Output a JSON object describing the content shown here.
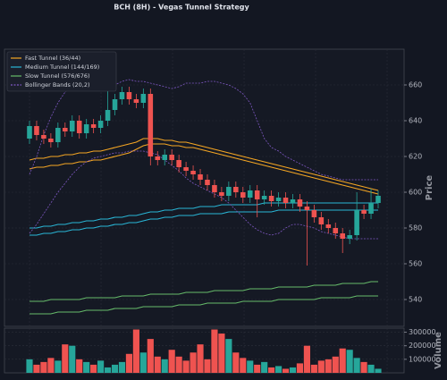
{
  "chart_data": {
    "type": "candlestick",
    "title": "BCH (8H) - Vegas Tunnel Strategy",
    "ylabel": "Price",
    "ylim": [
      525,
      680
    ],
    "yticks": [
      540,
      560,
      580,
      600,
      620,
      640,
      660
    ],
    "grid": true,
    "legend": "upper left",
    "up_color": "#26a69a",
    "down_color": "#ef5350",
    "open": [
      630,
      637,
      632,
      630,
      628,
      636,
      634,
      640,
      633,
      638,
      636,
      640,
      646,
      652,
      656,
      652,
      650,
      655,
      620,
      618,
      621,
      618,
      614,
      612,
      610,
      607,
      604,
      600,
      598,
      603,
      600,
      597,
      601,
      596,
      598,
      595,
      597,
      594,
      596,
      592,
      590,
      586,
      582,
      580,
      577,
      574,
      576,
      590,
      588,
      594
    ],
    "close": [
      637,
      632,
      630,
      628,
      636,
      634,
      640,
      633,
      638,
      636,
      640,
      646,
      652,
      656,
      652,
      650,
      655,
      620,
      618,
      621,
      618,
      614,
      612,
      610,
      607,
      604,
      600,
      598,
      603,
      600,
      597,
      601,
      596,
      598,
      595,
      597,
      594,
      596,
      592,
      590,
      586,
      582,
      580,
      577,
      574,
      576,
      590,
      588,
      594,
      598
    ],
    "high": [
      640,
      640,
      635,
      633,
      639,
      639,
      643,
      643,
      641,
      641,
      643,
      660,
      655,
      659,
      659,
      655,
      658,
      658,
      623,
      624,
      624,
      621,
      617,
      615,
      613,
      610,
      607,
      603,
      606,
      606,
      603,
      604,
      604,
      601,
      601,
      600,
      600,
      599,
      599,
      595,
      593,
      589,
      585,
      583,
      580,
      579,
      600,
      593,
      602,
      601
    ],
    "low": [
      627,
      629,
      627,
      625,
      625,
      631,
      631,
      630,
      630,
      633,
      633,
      637,
      643,
      649,
      649,
      647,
      647,
      615,
      615,
      615,
      615,
      611,
      609,
      607,
      604,
      601,
      597,
      595,
      595,
      597,
      594,
      594,
      586,
      593,
      592,
      592,
      591,
      591,
      589,
      559,
      583,
      579,
      577,
      574,
      566,
      571,
      573,
      585,
      585,
      591
    ],
    "series": [
      {
        "name": "Fast Tunnel (36/44)",
        "color": "#f5a623",
        "upper": [
          618,
          619,
          619,
          620,
          620,
          621,
          621,
          622,
          622,
          623,
          623,
          624,
          625,
          626,
          627,
          628,
          630,
          630,
          630,
          629,
          629,
          628,
          628,
          627,
          626,
          625,
          624,
          623,
          622,
          621,
          620,
          619,
          618,
          617,
          616,
          615,
          614,
          613,
          612,
          611,
          610,
          609,
          608,
          607,
          606,
          605,
          604,
          603,
          602,
          601
        ],
        "lower": [
          613,
          614,
          614,
          615,
          615,
          616,
          616,
          617,
          617,
          618,
          618,
          619,
          620,
          621,
          622,
          624,
          626,
          627,
          627,
          627,
          626,
          626,
          625,
          625,
          624,
          623,
          622,
          621,
          620,
          619,
          618,
          617,
          616,
          615,
          614,
          613,
          612,
          611,
          610,
          609,
          608,
          607,
          606,
          605,
          604,
          603,
          602,
          601,
          600,
          599
        ]
      },
      {
        "name": "Medium Tunnel (144/169)",
        "color": "#29b6d6",
        "upper": [
          580,
          580,
          581,
          581,
          582,
          582,
          583,
          583,
          584,
          584,
          585,
          585,
          586,
          586,
          587,
          587,
          588,
          589,
          589,
          590,
          590,
          591,
          591,
          591,
          592,
          592,
          592,
          593,
          593,
          593,
          593,
          593,
          593,
          594,
          594,
          594,
          594,
          594,
          594,
          594,
          594,
          594,
          594,
          594,
          594,
          594,
          594,
          594,
          594,
          594
        ],
        "lower": [
          576,
          576,
          577,
          577,
          578,
          578,
          579,
          579,
          580,
          580,
          581,
          581,
          582,
          582,
          583,
          583,
          584,
          585,
          585,
          586,
          586,
          587,
          587,
          587,
          588,
          588,
          588,
          588,
          589,
          589,
          589,
          589,
          589,
          589,
          589,
          590,
          590,
          590,
          590,
          590,
          590,
          590,
          590,
          590,
          590,
          590,
          590,
          590,
          590,
          590
        ]
      },
      {
        "name": "Slow Tunnel (576/676)",
        "color": "#66bb6a",
        "upper": [
          539,
          539,
          539,
          540,
          540,
          540,
          540,
          540,
          541,
          541,
          541,
          541,
          541,
          542,
          542,
          542,
          542,
          543,
          543,
          543,
          543,
          543,
          544,
          544,
          544,
          544,
          545,
          545,
          545,
          545,
          545,
          546,
          546,
          546,
          546,
          547,
          547,
          547,
          547,
          547,
          548,
          548,
          548,
          548,
          549,
          549,
          549,
          549,
          550,
          550
        ],
        "lower": [
          532,
          532,
          532,
          532,
          533,
          533,
          533,
          533,
          534,
          534,
          534,
          534,
          535,
          535,
          535,
          535,
          536,
          536,
          536,
          536,
          536,
          537,
          537,
          537,
          537,
          538,
          538,
          538,
          538,
          538,
          539,
          539,
          539,
          539,
          539,
          540,
          540,
          540,
          540,
          540,
          540,
          541,
          541,
          541,
          541,
          541,
          542,
          542,
          542,
          542
        ]
      },
      {
        "name": "Bollinger Bands (20,2)",
        "color": "#7e57c2",
        "style": "dashed",
        "upper": [
          610,
          620,
          632,
          642,
          650,
          656,
          660,
          660,
          659,
          657,
          657,
          658,
          660,
          662,
          663,
          662,
          662,
          661,
          660,
          659,
          658,
          659,
          661,
          661,
          661,
          662,
          662,
          661,
          660,
          658,
          655,
          650,
          640,
          630,
          625,
          623,
          620,
          618,
          616,
          614,
          612,
          610,
          609,
          608,
          607,
          607,
          607,
          607,
          607,
          607
        ],
        "lower": [
          577,
          582,
          588,
          594,
          600,
          605,
          610,
          614,
          617,
          619,
          620,
          621,
          622,
          622,
          623,
          623,
          623,
          622,
          621,
          618,
          615,
          612,
          608,
          605,
          603,
          601,
          599,
          597,
          594,
          590,
          586,
          582,
          579,
          577,
          576,
          577,
          580,
          582,
          582,
          581,
          580,
          578,
          577,
          576,
          575,
          574,
          574,
          574,
          574,
          574
        ]
      }
    ],
    "volume": {
      "ylabel": "Volume",
      "ylim": [
        0,
        330000
      ],
      "yticks": [
        100000,
        200000,
        300000
      ],
      "values": [
        100000,
        60000,
        80000,
        110000,
        90000,
        210000,
        200000,
        100000,
        80000,
        60000,
        90000,
        40000,
        60000,
        80000,
        140000,
        320000,
        150000,
        250000,
        120000,
        100000,
        170000,
        120000,
        90000,
        150000,
        210000,
        100000,
        320000,
        290000,
        250000,
        150000,
        110000,
        90000,
        60000,
        80000,
        40000,
        50000,
        30000,
        40000,
        70000,
        200000,
        60000,
        90000,
        100000,
        120000,
        180000,
        170000,
        110000,
        80000,
        60000,
        30000
      ]
    }
  }
}
